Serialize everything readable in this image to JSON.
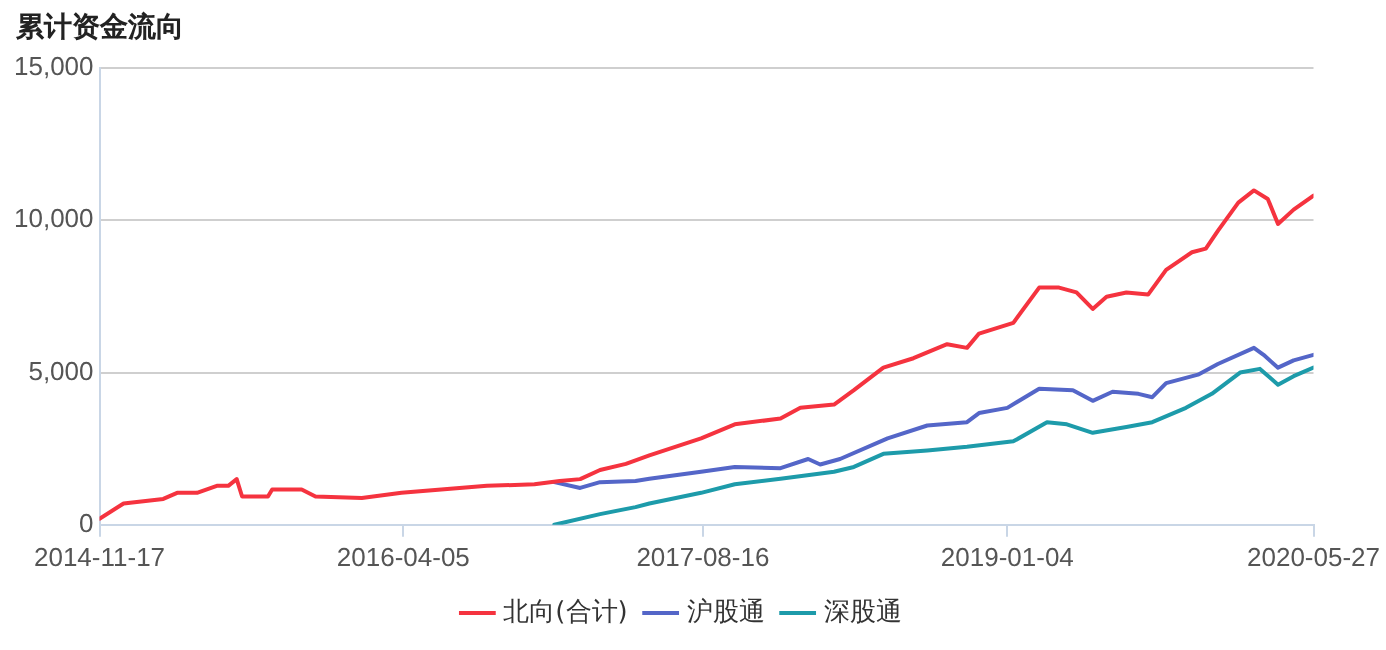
{
  "chart_data": {
    "type": "line",
    "title": "累计资金流向",
    "xlim": [
      "2014-11-17",
      "2020-05-27"
    ],
    "xticks": [
      "2014-11-17",
      "2016-04-05",
      "2017-08-16",
      "2019-01-04",
      "2020-05-27"
    ],
    "ylim": [
      0,
      15000
    ],
    "yticks": [
      {
        "value": 0,
        "label": "0"
      },
      {
        "value": 5000,
        "label": "5,000"
      },
      {
        "value": 10000,
        "label": "10,000"
      },
      {
        "value": 15000,
        "label": "15,000"
      }
    ],
    "grid": "y",
    "legend": "bottom",
    "marker": "none",
    "line_style": "solid",
    "series": [
      {
        "name": "北向(合计)",
        "color": "#f5333f",
        "x": [
          "2014-11-17",
          "2014-12-27",
          "2015-03-03",
          "2015-03-26",
          "2015-04-28",
          "2015-05-31",
          "2015-06-19",
          "2015-07-03",
          "2015-07-12",
          "2015-08-24",
          "2015-08-31",
          "2015-10-19",
          "2015-11-11",
          "2016-01-27",
          "2016-04-02",
          "2016-06-07",
          "2016-08-22",
          "2016-11-09",
          "2016-12-21",
          "2017-01-24",
          "2017-02-26",
          "2017-04-10",
          "2017-05-19",
          "2017-08-13",
          "2017-10-08",
          "2017-12-23",
          "2018-01-25",
          "2018-03-22",
          "2018-04-24",
          "2018-06-12",
          "2018-08-01",
          "2018-09-26",
          "2018-10-29",
          "2018-11-18",
          "2019-01-14",
          "2019-02-26",
          "2019-03-31",
          "2019-04-29",
          "2019-05-26",
          "2019-06-18",
          "2019-07-21",
          "2019-08-26",
          "2019-09-25",
          "2019-11-07",
          "2019-11-30",
          "2019-12-20",
          "2020-01-23",
          "2020-02-18",
          "2020-03-12",
          "2020-03-29",
          "2020-04-24",
          "2020-05-27"
        ],
        "values": [
          200,
          700,
          850,
          1050,
          1050,
          1280,
          1280,
          1500,
          930,
          930,
          1160,
          1160,
          930,
          880,
          1050,
          1160,
          1280,
          1330,
          1440,
          1500,
          1800,
          2000,
          2280,
          2840,
          3300,
          3490,
          3840,
          3950,
          4420,
          5160,
          5470,
          5930,
          5810,
          6280,
          6630,
          7790,
          7790,
          7630,
          7090,
          7490,
          7630,
          7560,
          8370,
          8950,
          9070,
          9650,
          10580,
          10980,
          10700,
          9880,
          10350,
          10810
        ]
      },
      {
        "name": "沪股通",
        "color": "#5466c8",
        "x": [
          "2016-12-12",
          "2017-01-24",
          "2017-02-26",
          "2017-04-26",
          "2017-05-19",
          "2017-08-13",
          "2017-10-08",
          "2017-12-23",
          "2018-02-07",
          "2018-02-27",
          "2018-04-01",
          "2018-06-19",
          "2018-08-24",
          "2018-10-29",
          "2018-11-18",
          "2019-01-04",
          "2019-02-26",
          "2019-04-23",
          "2019-05-26",
          "2019-06-28",
          "2019-08-10",
          "2019-09-02",
          "2019-09-25",
          "2019-11-17",
          "2019-12-20",
          "2020-02-18",
          "2020-03-05",
          "2020-03-29",
          "2020-04-24",
          "2020-05-27"
        ],
        "values": [
          1400,
          1210,
          1400,
          1440,
          1510,
          1740,
          1900,
          1860,
          2160,
          1980,
          2160,
          2840,
          3260,
          3370,
          3670,
          3840,
          4470,
          4420,
          4070,
          4370,
          4300,
          4190,
          4650,
          4930,
          5280,
          5810,
          5580,
          5160,
          5400,
          5580
        ]
      },
      {
        "name": "深股通",
        "color": "#1d9baa",
        "x": [
          "2016-12-12",
          "2017-02-26",
          "2017-04-26",
          "2017-05-19",
          "2017-08-13",
          "2017-10-08",
          "2017-12-23",
          "2018-03-22",
          "2018-04-24",
          "2018-06-12",
          "2018-08-24",
          "2018-10-29",
          "2019-01-14",
          "2019-03-11",
          "2019-04-13",
          "2019-05-26",
          "2019-07-21",
          "2019-09-02",
          "2019-10-28",
          "2019-12-10",
          "2020-01-26",
          "2020-02-28",
          "2020-03-29",
          "2020-04-24",
          "2020-05-27"
        ],
        "values": [
          0,
          350,
          580,
          700,
          1050,
          1330,
          1510,
          1740,
          1900,
          2330,
          2440,
          2560,
          2740,
          3370,
          3300,
          3020,
          3210,
          3370,
          3840,
          4300,
          5000,
          5120,
          4600,
          4880,
          5160
        ]
      }
    ]
  }
}
